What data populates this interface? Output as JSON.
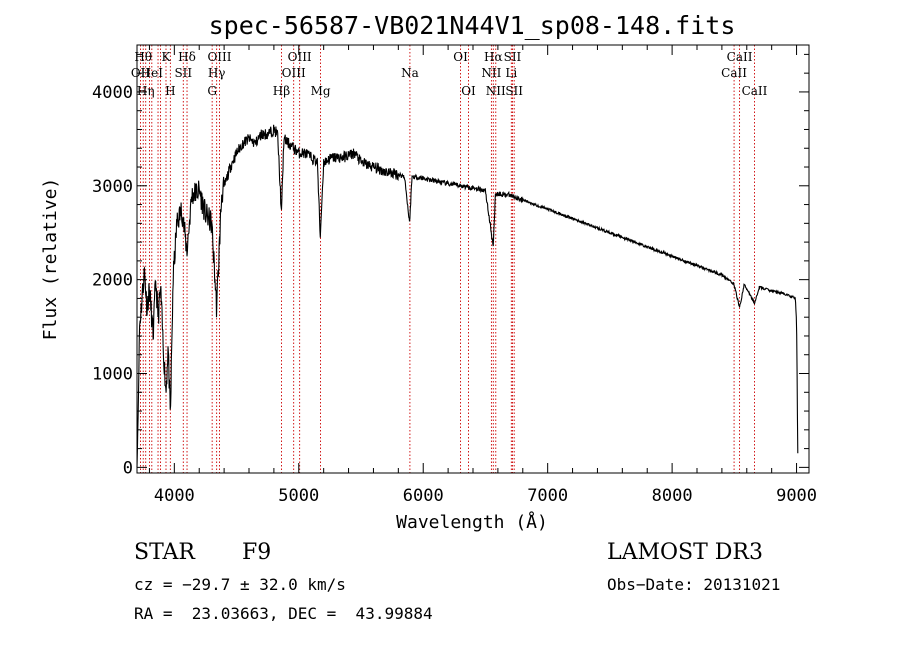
{
  "chart_data": {
    "type": "line",
    "title": "spec-56587-VB021N44V1_sp08-148.fits",
    "xlabel": "Wavelength (Å)",
    "ylabel": "Flux (relative)",
    "xlim": [
      3700,
      9100
    ],
    "ylim": [
      -60,
      4500
    ],
    "xticks": [
      4000,
      5000,
      6000,
      7000,
      8000,
      9000
    ],
    "yticks": [
      0,
      1000,
      2000,
      3000,
      4000
    ],
    "xtick_labels": [
      "4000",
      "5000",
      "6000",
      "7000",
      "8000",
      "9000"
    ],
    "ytick_labels": [
      "0",
      "1000",
      "2000",
      "3000",
      "4000"
    ],
    "line_color": "#000000",
    "marker_color": "#cc0000",
    "continuum": [
      [
        3700,
        0
      ],
      [
        3710,
        600
      ],
      [
        3720,
        1500
      ],
      [
        3740,
        1800
      ],
      [
        3760,
        2100
      ],
      [
        3780,
        1700
      ],
      [
        3800,
        1900
      ],
      [
        3830,
        1400
      ],
      [
        3850,
        2000
      ],
      [
        3870,
        1600
      ],
      [
        3890,
        1900
      ],
      [
        3910,
        1300
      ],
      [
        3933,
        800
      ],
      [
        3950,
        1300
      ],
      [
        3968,
        500
      ],
      [
        3990,
        2000
      ],
      [
        4020,
        2600
      ],
      [
        4060,
        2750
      ],
      [
        4101,
        2300
      ],
      [
        4140,
        2900
      ],
      [
        4200,
        2950
      ],
      [
        4250,
        2700
      ],
      [
        4300,
        2600
      ],
      [
        4340,
        1700
      ],
      [
        4380,
        2900
      ],
      [
        4450,
        3200
      ],
      [
        4500,
        3350
      ],
      [
        4550,
        3450
      ],
      [
        4600,
        3500
      ],
      [
        4650,
        3450
      ],
      [
        4700,
        3550
      ],
      [
        4750,
        3550
      ],
      [
        4800,
        3600
      ],
      [
        4830,
        3550
      ],
      [
        4861,
        2700
      ],
      [
        4880,
        3500
      ],
      [
        4920,
        3450
      ],
      [
        4960,
        3400
      ],
      [
        5000,
        3350
      ],
      [
        5050,
        3350
      ],
      [
        5100,
        3300
      ],
      [
        5150,
        3250
      ],
      [
        5172,
        2450
      ],
      [
        5200,
        3250
      ],
      [
        5270,
        3300
      ],
      [
        5350,
        3300
      ],
      [
        5450,
        3350
      ],
      [
        5500,
        3250
      ],
      [
        5600,
        3200
      ],
      [
        5700,
        3150
      ],
      [
        5800,
        3120
      ],
      [
        5850,
        3100
      ],
      [
        5890,
        2600
      ],
      [
        5910,
        3100
      ],
      [
        6000,
        3080
      ],
      [
        6100,
        3050
      ],
      [
        6200,
        3020
      ],
      [
        6300,
        3000
      ],
      [
        6400,
        2980
      ],
      [
        6500,
        2950
      ],
      [
        6563,
        2350
      ],
      [
        6580,
        2920
      ],
      [
        6700,
        2900
      ],
      [
        6800,
        2850
      ],
      [
        6900,
        2800
      ],
      [
        7000,
        2750
      ],
      [
        7200,
        2650
      ],
      [
        7400,
        2550
      ],
      [
        7600,
        2450
      ],
      [
        7800,
        2350
      ],
      [
        8000,
        2250
      ],
      [
        8200,
        2150
      ],
      [
        8400,
        2050
      ],
      [
        8498,
        1950
      ],
      [
        8542,
        1700
      ],
      [
        8580,
        1950
      ],
      [
        8662,
        1750
      ],
      [
        8700,
        1920
      ],
      [
        8800,
        1880
      ],
      [
        8900,
        1850
      ],
      [
        8990,
        1800
      ],
      [
        9000,
        1550
      ],
      [
        9010,
        150
      ]
    ],
    "line_markers": [
      {
        "w": 3728,
        "label": "OII",
        "row": 1
      },
      {
        "w": 3750,
        "label": "Hθ",
        "row": 0
      },
      {
        "w": 3770,
        "label": "Hη",
        "row": 2
      },
      {
        "w": 3800,
        "label": "",
        "row": -1
      },
      {
        "w": 3819,
        "label": "HeI",
        "row": 1
      },
      {
        "w": 3869,
        "label": "",
        "row": -1
      },
      {
        "w": 3889,
        "label": "",
        "row": -1
      },
      {
        "w": 3933,
        "label": "K",
        "row": 0
      },
      {
        "w": 3968,
        "label": "H",
        "row": 2
      },
      {
        "w": 4072,
        "label": "SII",
        "row": 1
      },
      {
        "w": 4102,
        "label": "Hδ",
        "row": 0
      },
      {
        "w": 4304,
        "label": "G",
        "row": 2
      },
      {
        "w": 4340,
        "label": "Hγ",
        "row": 1
      },
      {
        "w": 4363,
        "label": "OIII",
        "row": 0
      },
      {
        "w": 4861,
        "label": "Hβ",
        "row": 2
      },
      {
        "w": 4959,
        "label": "OIII",
        "row": 1
      },
      {
        "w": 5007,
        "label": "OIII",
        "row": 0
      },
      {
        "w": 5175,
        "label": "Mg",
        "row": 2
      },
      {
        "w": 5893,
        "label": "Na",
        "row": 1
      },
      {
        "w": 6300,
        "label": "OI",
        "row": 0
      },
      {
        "w": 6364,
        "label": "OI",
        "row": 2
      },
      {
        "w": 6548,
        "label": "NII",
        "row": 1
      },
      {
        "w": 6563,
        "label": "Hα",
        "row": 0
      },
      {
        "w": 6583,
        "label": "NII",
        "row": 2
      },
      {
        "w": 6708,
        "label": "Li",
        "row": 1
      },
      {
        "w": 6717,
        "label": "SII",
        "row": 0
      },
      {
        "w": 6731,
        "label": "SII",
        "row": 2
      },
      {
        "w": 8498,
        "label": "CaII",
        "row": 1
      },
      {
        "w": 8542,
        "label": "CaII",
        "row": 0
      },
      {
        "w": 8662,
        "label": "CaII",
        "row": 2
      }
    ]
  },
  "info": {
    "class_label": "STAR",
    "subclass": "F9",
    "survey": "LAMOST DR3",
    "cz": "cz = −29.7 ± 32.0 km/s",
    "obs_date": "Obs−Date: 20131021",
    "coords": "RA =  23.03663, DEC =  43.99884"
  }
}
